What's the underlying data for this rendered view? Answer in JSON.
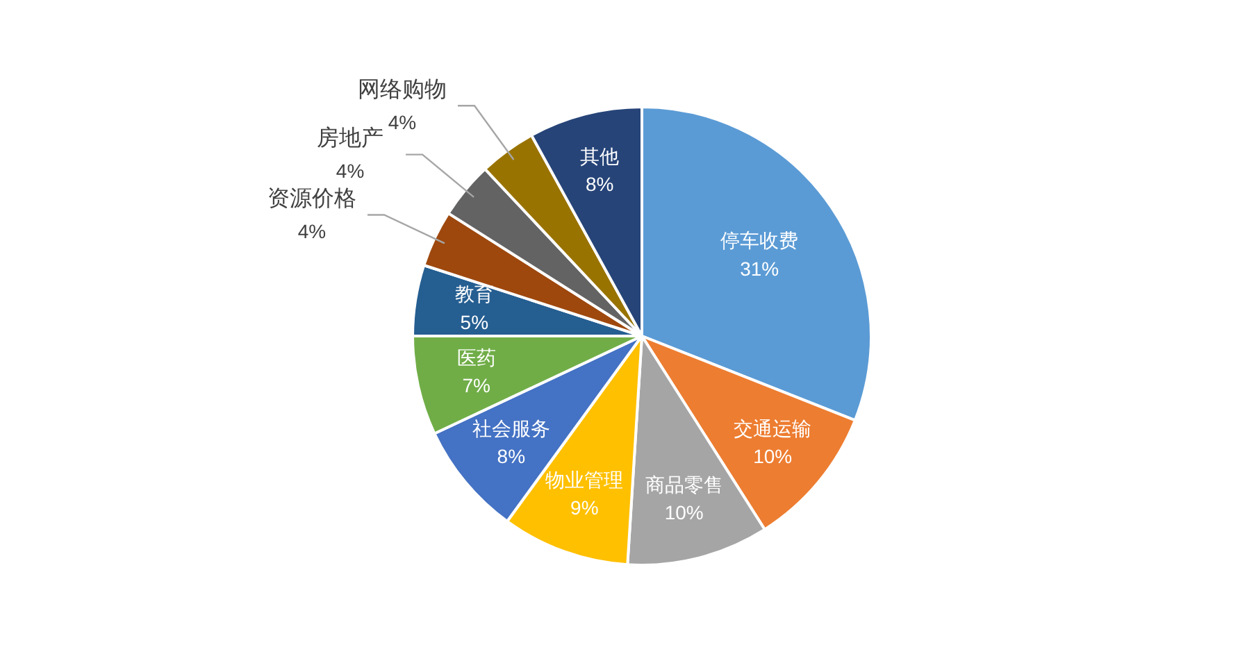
{
  "chart_data": {
    "type": "pie",
    "categories": [
      "停车收费",
      "交通运输",
      "商品零售",
      "物业管理",
      "社会服务",
      "医药",
      "教育",
      "资源价格",
      "房地产",
      "网络购物",
      "其他"
    ],
    "values": [
      31,
      10,
      10,
      9,
      8,
      7,
      5,
      4,
      4,
      4,
      8
    ],
    "value_labels": [
      "31%",
      "10%",
      "10%",
      "9%",
      "8%",
      "7%",
      "5%",
      "4%",
      "4%",
      "4%",
      "8%"
    ],
    "colors": [
      "#5b9bd5",
      "#ed7d31",
      "#a5a5a5",
      "#ffc000",
      "#4472c4",
      "#70ad47",
      "#255e91",
      "#9e480e",
      "#636363",
      "#997300",
      "#264478"
    ],
    "legend": false
  }
}
